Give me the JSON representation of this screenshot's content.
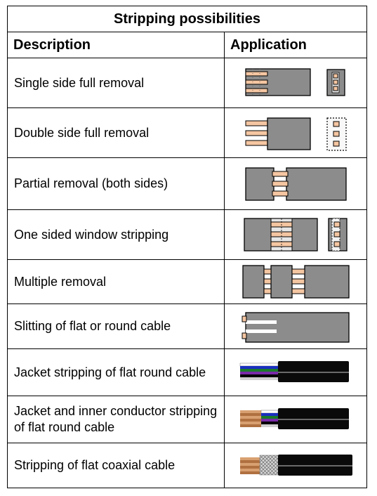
{
  "title": "Stripping possibilities",
  "headers": {
    "description": "Description",
    "application": "Application"
  },
  "rows": [
    {
      "description": "Single side full removal",
      "icon": "single-side-full-removal-icon"
    },
    {
      "description": "Double side full removal",
      "icon": "double-side-full-removal-icon"
    },
    {
      "description": "Partial removal (both sides)",
      "icon": "partial-removal-icon"
    },
    {
      "description": "One sided window stripping",
      "icon": "window-stripping-icon"
    },
    {
      "description": "Multiple removal",
      "icon": "multiple-removal-icon"
    },
    {
      "description": "Slitting of flat or round cable",
      "icon": "slitting-icon"
    },
    {
      "description": "Jacket stripping of flat round cable",
      "icon": "jacket-stripping-icon"
    },
    {
      "description": "Jacket and inner conductor stripping of flat round cable",
      "icon": "jacket-inner-conductor-stripping-icon"
    },
    {
      "description": "Stripping of flat coaxial cable",
      "icon": "coaxial-stripping-icon"
    }
  ],
  "colors": {
    "jacket_gray": "#8c8c8c",
    "copper": "#f5c6a2",
    "black_jacket": "#0a0a0a"
  }
}
